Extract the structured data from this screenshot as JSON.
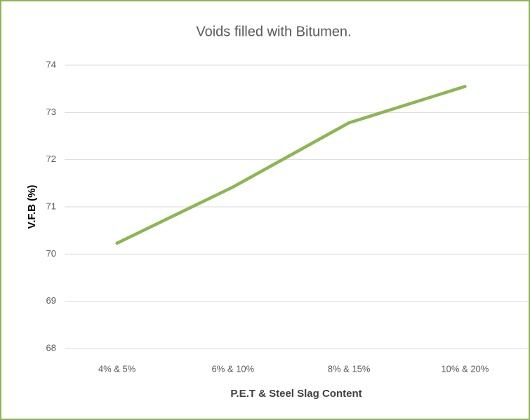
{
  "chart_data": {
    "type": "line",
    "title": "Voids filled with Bitumen.",
    "x_label": "P.E.T & Steel Slag Content",
    "y_label": "V.F.B (%)",
    "categories": [
      "4% & 5%",
      "6% & 10%",
      "8% & 15%",
      "10% & 20%"
    ],
    "series": [
      {
        "name": "V.F.B",
        "color": "#8db653",
        "values": [
          70.23,
          71.42,
          72.78,
          73.55
        ]
      }
    ],
    "ylim": [
      68,
      74
    ],
    "yticks": [
      68,
      69,
      70,
      71,
      72,
      73,
      74
    ],
    "grid": true,
    "legend": false
  }
}
